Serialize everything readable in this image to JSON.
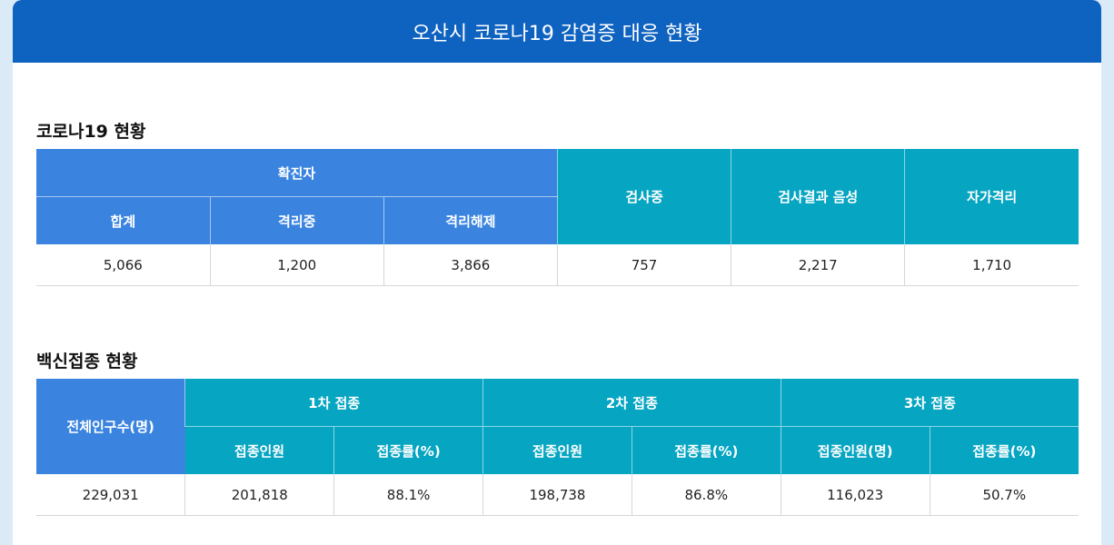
{
  "header": {
    "title": "오산시 코로나19 감염증 대응 현황"
  },
  "covid": {
    "section_title": "코로나19 현황",
    "confirmed_label": "확진자",
    "headers": {
      "total": "합계",
      "isolating": "격리중",
      "released": "격리해제",
      "testing": "검사중",
      "negative": "검사결과 음성",
      "self_quarantine": "자가격리"
    },
    "values": [
      "5,066",
      "1,200",
      "3,866",
      "757",
      "2,217",
      "1,710"
    ]
  },
  "vaccine": {
    "section_title": "백신접종 현황",
    "headers": {
      "population": "전체인구수(명)",
      "dose1": "1차 접종",
      "dose2": "2차 접종",
      "dose3": "3차 접종",
      "dose1_people": "접종인원",
      "dose1_rate": "접종률(%)",
      "dose2_people": "접종인원",
      "dose2_rate": "접종률(%)",
      "dose3_people": "접종인원(명)",
      "dose3_rate": "접종률(%)"
    },
    "values": [
      "229,031",
      "201,818",
      "88.1%",
      "198,738",
      "86.8%",
      "116,023",
      "50.7%"
    ]
  },
  "colors": {
    "header_bg": "#0e62c0",
    "blue_header": "#3a84e0",
    "teal_header": "#06a5c2"
  }
}
